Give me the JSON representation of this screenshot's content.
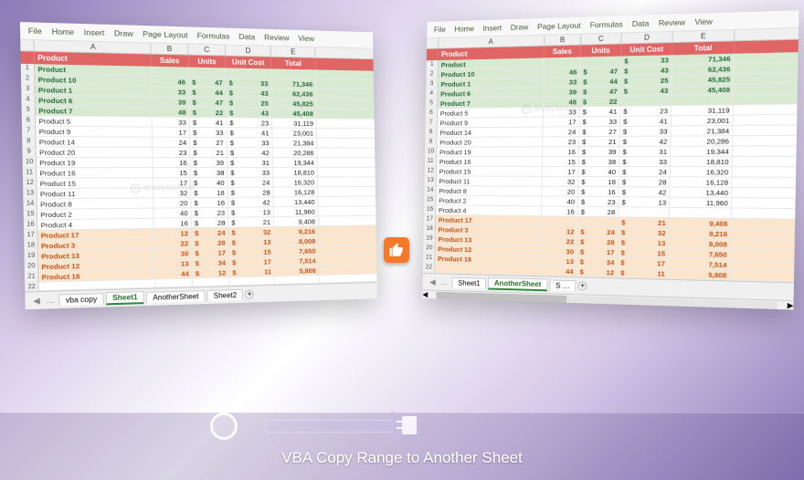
{
  "brand": "analysistabs",
  "caption": "VBA Copy Range to Another Sheet",
  "ribbon_tabs": [
    "File",
    "Home",
    "Insert",
    "Draw",
    "Page Layout",
    "Formulas",
    "Data",
    "Review",
    "View"
  ],
  "col_letters": [
    "",
    "A",
    "B",
    "C",
    "D",
    "E"
  ],
  "header_band": [
    "Product",
    "Sales",
    "Units",
    "Unit Cost",
    "Total"
  ],
  "left": {
    "rows": [
      {
        "n": 1,
        "name": "Product",
        "s": "",
        "u": "",
        "uc": "",
        "t": "",
        "band": "green"
      },
      {
        "n": 2,
        "name": "Product 10",
        "s": "46",
        "u": "47",
        "uc": "33",
        "t": "71,346",
        "band": "green"
      },
      {
        "n": 3,
        "name": "Product 1",
        "s": "33",
        "u": "44",
        "uc": "43",
        "t": "62,436",
        "band": "green"
      },
      {
        "n": 4,
        "name": "Product 6",
        "s": "39",
        "u": "47",
        "uc": "25",
        "t": "45,825",
        "band": "green"
      },
      {
        "n": 5,
        "name": "Product 7",
        "s": "48",
        "u": "22",
        "uc": "43",
        "t": "45,408",
        "band": "green"
      },
      {
        "n": 6,
        "name": "Product 5",
        "s": "33",
        "u": "41",
        "uc": "23",
        "t": "31,119",
        "band": "white"
      },
      {
        "n": 7,
        "name": "Product 9",
        "s": "17",
        "u": "33",
        "uc": "41",
        "t": "23,001",
        "band": "white"
      },
      {
        "n": 8,
        "name": "Product 14",
        "s": "24",
        "u": "27",
        "uc": "33",
        "t": "21,384",
        "band": "white"
      },
      {
        "n": 9,
        "name": "Product 20",
        "s": "23",
        "u": "21",
        "uc": "42",
        "t": "20,286",
        "band": "white"
      },
      {
        "n": 10,
        "name": "Product 19",
        "s": "16",
        "u": "39",
        "uc": "31",
        "t": "19,344",
        "band": "white"
      },
      {
        "n": 11,
        "name": "Product 16",
        "s": "15",
        "u": "38",
        "uc": "33",
        "t": "18,810",
        "band": "white"
      },
      {
        "n": 12,
        "name": "Product 15",
        "s": "17",
        "u": "40",
        "uc": "24",
        "t": "16,320",
        "band": "white"
      },
      {
        "n": 13,
        "name": "Product 11",
        "s": "32",
        "u": "18",
        "uc": "28",
        "t": "16,128",
        "band": "white"
      },
      {
        "n": 14,
        "name": "Product 8",
        "s": "20",
        "u": "16",
        "uc": "42",
        "t": "13,440",
        "band": "white"
      },
      {
        "n": 15,
        "name": "Product 2",
        "s": "40",
        "u": "23",
        "uc": "13",
        "t": "11,960",
        "band": "white"
      },
      {
        "n": 16,
        "name": "Product 4",
        "s": "16",
        "u": "28",
        "uc": "21",
        "t": "9,408",
        "band": "white"
      },
      {
        "n": 17,
        "name": "Product 17",
        "s": "12",
        "u": "24",
        "uc": "32",
        "t": "9,216",
        "band": "orange"
      },
      {
        "n": 18,
        "name": "Product 3",
        "s": "22",
        "u": "28",
        "uc": "13",
        "t": "8,008",
        "band": "orange"
      },
      {
        "n": 19,
        "name": "Product 13",
        "s": "30",
        "u": "17",
        "uc": "15",
        "t": "7,650",
        "band": "orange"
      },
      {
        "n": 20,
        "name": "Product 12",
        "s": "13",
        "u": "34",
        "uc": "17",
        "t": "7,514",
        "band": "orange"
      },
      {
        "n": 21,
        "name": "Product 18",
        "s": "44",
        "u": "12",
        "uc": "11",
        "t": "5,808",
        "band": "orange"
      },
      {
        "n": 22,
        "name": "",
        "s": "",
        "u": "",
        "uc": "",
        "t": "",
        "band": "white"
      }
    ],
    "tabs": [
      "vba copy",
      "Sheet1",
      "AnotherSheet",
      "Sheet2"
    ],
    "active_tab": "Sheet1"
  },
  "right": {
    "rows": [
      {
        "n": 1,
        "name": "Product",
        "s": "",
        "u": "",
        "uc": "33",
        "t": "71,346",
        "band": "green"
      },
      {
        "n": 2,
        "name": "Product 10",
        "s": "46",
        "u": "47",
        "uc": "43",
        "t": "62,436",
        "band": "green"
      },
      {
        "n": 3,
        "name": "Product 1",
        "s": "33",
        "u": "44",
        "uc": "25",
        "t": "45,825",
        "band": "green"
      },
      {
        "n": 4,
        "name": "Product 6",
        "s": "39",
        "u": "47",
        "uc": "43",
        "t": "45,408",
        "band": "green"
      },
      {
        "n": 5,
        "name": "Product 7",
        "s": "48",
        "u": "22",
        "uc": "",
        "t": "",
        "band": "green"
      },
      {
        "n": 6,
        "name": "Product 5",
        "s": "33",
        "u": "41",
        "uc": "23",
        "t": "31,119",
        "band": "white"
      },
      {
        "n": 7,
        "name": "Product 9",
        "s": "17",
        "u": "33",
        "uc": "41",
        "t": "23,001",
        "band": "white"
      },
      {
        "n": 8,
        "name": "Product 14",
        "s": "24",
        "u": "27",
        "uc": "33",
        "t": "21,384",
        "band": "white"
      },
      {
        "n": 9,
        "name": "Product 20",
        "s": "23",
        "u": "21",
        "uc": "42",
        "t": "20,286",
        "band": "white"
      },
      {
        "n": 10,
        "name": "Product 19",
        "s": "16",
        "u": "39",
        "uc": "31",
        "t": "19,344",
        "band": "white"
      },
      {
        "n": 11,
        "name": "Product 16",
        "s": "15",
        "u": "38",
        "uc": "33",
        "t": "18,810",
        "band": "white"
      },
      {
        "n": 12,
        "name": "Product 15",
        "s": "17",
        "u": "40",
        "uc": "24",
        "t": "16,320",
        "band": "white"
      },
      {
        "n": 13,
        "name": "Product 11",
        "s": "32",
        "u": "18",
        "uc": "28",
        "t": "16,128",
        "band": "white"
      },
      {
        "n": 14,
        "name": "Product 8",
        "s": "20",
        "u": "16",
        "uc": "42",
        "t": "13,440",
        "band": "white"
      },
      {
        "n": 15,
        "name": "Product 2",
        "s": "40",
        "u": "23",
        "uc": "13",
        "t": "11,960",
        "band": "white"
      },
      {
        "n": 16,
        "name": "Product 4",
        "s": "16",
        "u": "28",
        "uc": "",
        "t": "",
        "band": "white"
      },
      {
        "n": 17,
        "name": "Product 17",
        "s": "",
        "u": "",
        "uc": "21",
        "t": "9,408",
        "band": "orange"
      },
      {
        "n": 18,
        "name": "Product 3",
        "s": "12",
        "u": "24",
        "uc": "32",
        "t": "9,216",
        "band": "orange"
      },
      {
        "n": 19,
        "name": "Product 13",
        "s": "22",
        "u": "28",
        "uc": "13",
        "t": "8,008",
        "band": "orange"
      },
      {
        "n": 20,
        "name": "Product 12",
        "s": "30",
        "u": "17",
        "uc": "15",
        "t": "7,650",
        "band": "orange"
      },
      {
        "n": 21,
        "name": "Product 18",
        "s": "13",
        "u": "34",
        "uc": "17",
        "t": "7,514",
        "band": "orange"
      },
      {
        "n": 22,
        "name": "",
        "s": "44",
        "u": "12",
        "uc": "11",
        "t": "5,808",
        "band": "orange"
      }
    ],
    "tabs": [
      "Sheet1",
      "AnotherSheet",
      "S …"
    ],
    "active_tab": "AnotherSheet"
  },
  "colors": {
    "header_bg": "#e06666",
    "green_bg": "#d9ead3",
    "green_text": "#2a6b3f",
    "orange_bg": "#fce5cd",
    "orange_text": "#c05621",
    "thumb_bg": "#f6792b",
    "grid_line": "#e8e8e8"
  }
}
